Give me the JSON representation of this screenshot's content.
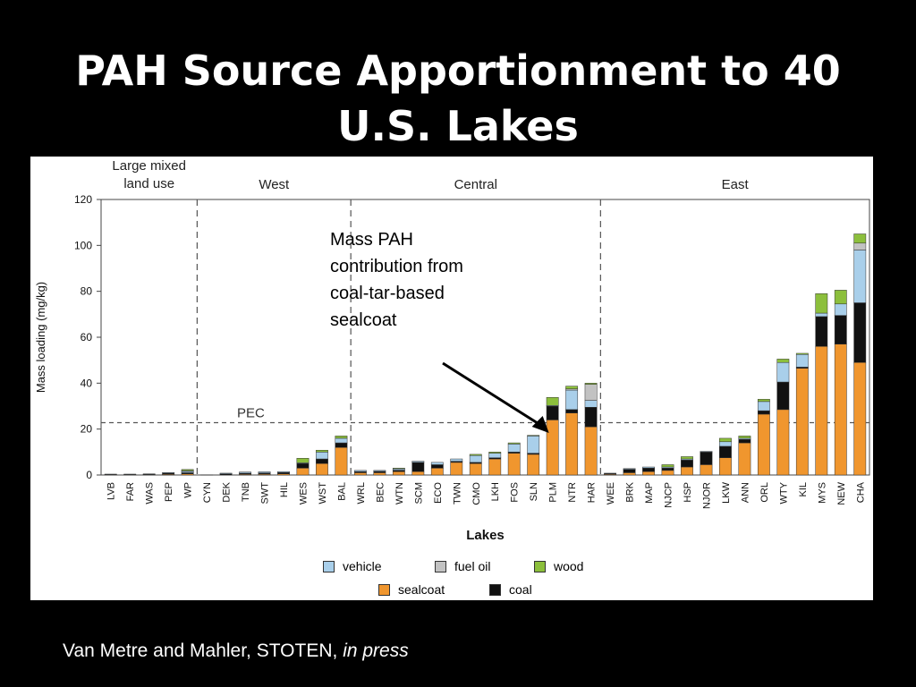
{
  "slide": {
    "title_lines": [
      "PAH Source Apportionment to 40",
      "U.S. Lakes"
    ],
    "annotation_lines": [
      "Mass PAH",
      "contribution from",
      "coal-tar-based",
      "sealcoat"
    ],
    "citation_plain": "Van Metre and Mahler, STOTEN,",
    "citation_italic": "in press"
  },
  "colors": {
    "sealcoat": "#f0962e",
    "coal": "#111111",
    "vehicle": "#a9cfea",
    "fuel_oil": "#c2c2c2",
    "wood": "#8cbf3c"
  },
  "chart_data": {
    "type": "bar",
    "stacked": true,
    "xlabel": "Lakes",
    "ylabel": "Mass loading (mg/kg)",
    "ylim": [
      0,
      120
    ],
    "yticks": [
      0,
      20,
      40,
      60,
      80,
      100,
      120
    ],
    "reference_line": {
      "label": "PEC",
      "value": 22.8
    },
    "groups": [
      {
        "label": "Large mixed\nland use",
        "categories": [
          "LVB",
          "FAR",
          "WAS",
          "PEP",
          "WP"
        ]
      },
      {
        "label": "West",
        "categories": [
          "CYN",
          "DEK",
          "TNB",
          "SWT",
          "HIL",
          "WES",
          "WST",
          "BAL"
        ]
      },
      {
        "label": "Central",
        "categories": [
          "WRL",
          "BEC",
          "WTN",
          "SCM",
          "ECO",
          "TWN",
          "CMO",
          "LKH",
          "FOS",
          "SLN",
          "PLM",
          "NTR",
          "HAR"
        ]
      },
      {
        "label": "East",
        "categories": [
          "WEE",
          "BRK",
          "MAP",
          "NJCP",
          "HSP",
          "NJOR",
          "LKW",
          "ANN",
          "ORL",
          "WTY",
          "KIL",
          "MYS",
          "NEW",
          "CHA"
        ]
      }
    ],
    "categories": [
      "LVB",
      "FAR",
      "WAS",
      "PEP",
      "WP",
      "CYN",
      "DEK",
      "TNB",
      "SWT",
      "HIL",
      "WES",
      "WST",
      "BAL",
      "WRL",
      "BEC",
      "WTN",
      "SCM",
      "ECO",
      "TWN",
      "CMO",
      "LKH",
      "FOS",
      "SLN",
      "PLM",
      "NTR",
      "HAR",
      "WEE",
      "BRK",
      "MAP",
      "NJCP",
      "HSP",
      "NJOR",
      "LKW",
      "ANN",
      "ORL",
      "WTY",
      "KIL",
      "MYS",
      "NEW",
      "CHA"
    ],
    "series": [
      {
        "name": "sealcoat",
        "color_key": "sealcoat",
        "values": [
          0,
          0,
          0,
          0.3,
          0.5,
          0,
          0,
          0.3,
          0.4,
          0.5,
          3,
          5,
          12,
          1,
          1,
          1.5,
          1.5,
          3,
          5.5,
          5,
          7,
          9.5,
          9,
          24,
          27,
          21,
          0.3,
          1,
          1.5,
          2,
          3.5,
          4.5,
          7.5,
          14,
          26.5,
          28.5,
          46.5,
          56,
          57,
          49
        ]
      },
      {
        "name": "coal",
        "color_key": "coal",
        "values": [
          0.2,
          0.2,
          0.3,
          0.5,
          0.5,
          0.1,
          0.5,
          0.5,
          0.5,
          0.6,
          2,
          2,
          2,
          0.5,
          0.6,
          0.6,
          4,
          1.5,
          0.5,
          0.5,
          0.5,
          0.5,
          0.5,
          6,
          1.5,
          8.5,
          0.3,
          1.5,
          1.5,
          1,
          3,
          5.5,
          5,
          1.5,
          1.5,
          12,
          0.5,
          13,
          12.5,
          26
        ]
      },
      {
        "name": "vehicle",
        "color_key": "vehicle",
        "values": [
          0.2,
          0.2,
          0.2,
          0.3,
          0.6,
          0,
          0.3,
          0.5,
          0.5,
          0.4,
          0.3,
          3,
          2,
          0.5,
          0.4,
          0.6,
          0.5,
          1,
          1,
          3,
          2,
          3.5,
          7.5,
          0.3,
          8.5,
          3,
          0.2,
          0.3,
          0.5,
          0.5,
          0.5,
          0.3,
          2,
          0.5,
          4,
          8.5,
          5.5,
          1.5,
          5,
          23
        ]
      },
      {
        "name": "fuel oil",
        "color_key": "fuel_oil",
        "values": [
          0,
          0,
          0,
          0,
          0.3,
          0,
          0,
          0,
          0,
          0,
          0,
          0,
          0,
          0,
          0,
          0,
          0,
          0,
          0,
          0,
          0,
          0,
          0,
          0,
          0.5,
          7,
          0,
          0,
          0,
          0,
          0,
          0,
          0,
          0,
          0,
          0,
          0,
          0,
          0,
          3
        ]
      },
      {
        "name": "wood",
        "color_key": "wood",
        "values": [
          0,
          0,
          0,
          0,
          0.5,
          0,
          0,
          0,
          0,
          0,
          2,
          0.8,
          1,
          0,
          0,
          0.3,
          0,
          0,
          0,
          0.5,
          0.5,
          0.5,
          0.3,
          3.5,
          1.2,
          0.5,
          0,
          0,
          0,
          1,
          1,
          0,
          1.5,
          1,
          1,
          1.5,
          0.5,
          8.5,
          6,
          4
        ]
      }
    ],
    "legend": [
      {
        "name": "vehicle",
        "color_key": "vehicle"
      },
      {
        "name": "fuel oil",
        "color_key": "fuel_oil"
      },
      {
        "name": "wood",
        "color_key": "wood"
      },
      {
        "name": "sealcoat",
        "color_key": "sealcoat"
      },
      {
        "name": "coal",
        "color_key": "coal"
      }
    ],
    "legend_position": "bottom"
  }
}
